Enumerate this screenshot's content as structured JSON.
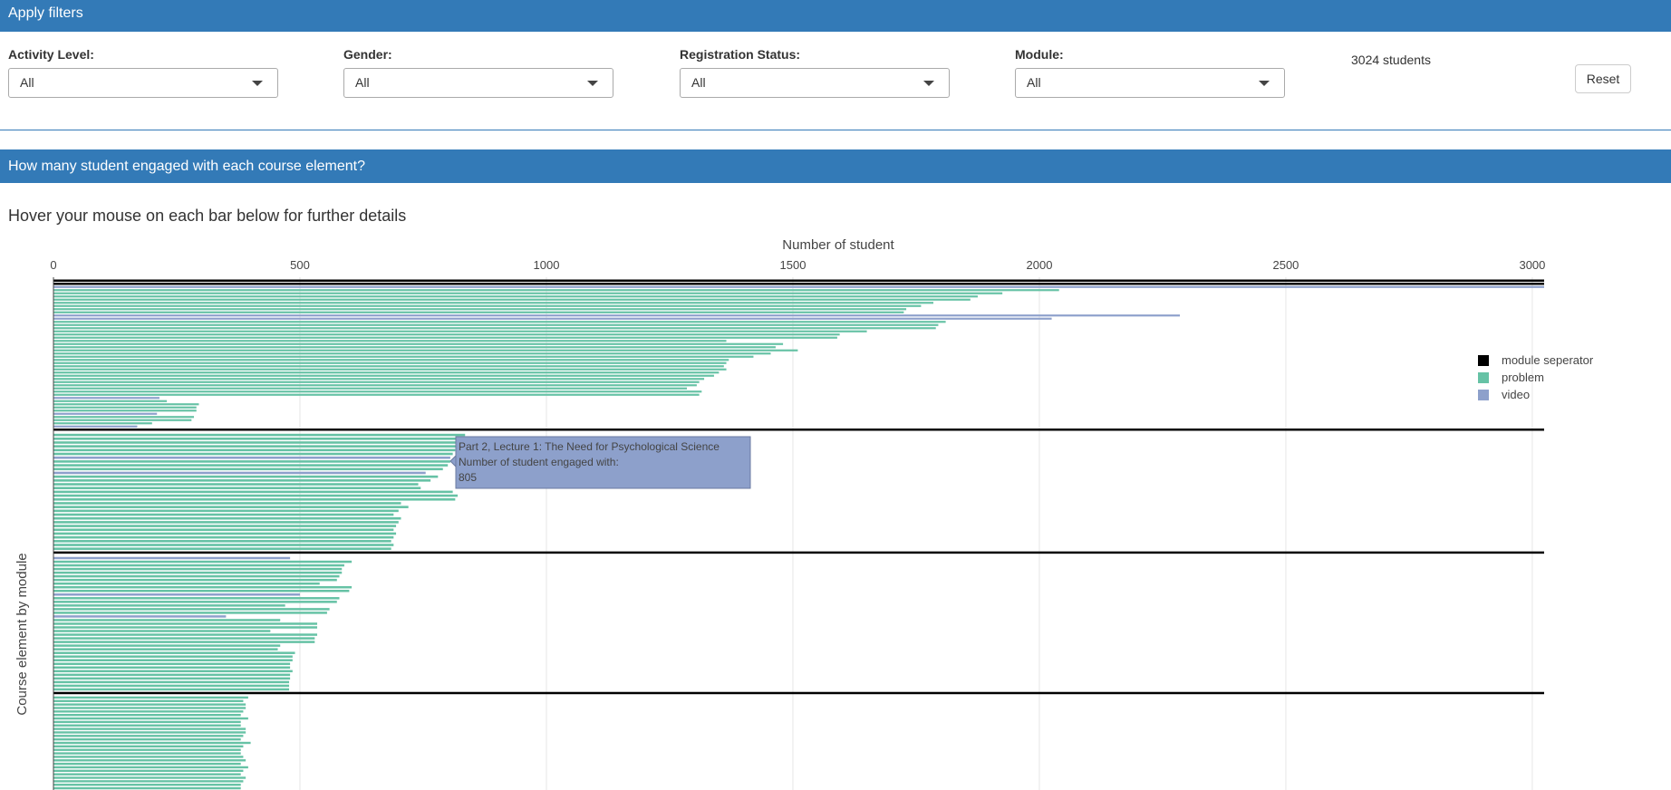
{
  "filters": {
    "heading": "Apply filters",
    "items": [
      {
        "label": "Activity Level:",
        "value": "All"
      },
      {
        "label": "Gender:",
        "value": "All"
      },
      {
        "label": "Registration Status:",
        "value": "All"
      },
      {
        "label": "Module:",
        "value": "All"
      }
    ],
    "student_count": "3024 students",
    "reset_label": "Reset"
  },
  "section": {
    "heading": "How many student engaged with each course element?",
    "hover_hint": "Hover your mouse on each bar below for further details"
  },
  "colors": {
    "header_bg": "#337ab7",
    "problem": "#66c2a5",
    "video": "#8da0cb",
    "separator": "#000000"
  },
  "chart_data": {
    "type": "bar",
    "orientation": "horizontal",
    "xlabel": "Number of student",
    "ylabel": "Course element by module",
    "xlim": [
      0,
      3024
    ],
    "xticks": [
      0,
      500,
      1000,
      1500,
      2000,
      2500,
      3000
    ],
    "grid": true,
    "legend_position": "right",
    "legend": [
      "module seperator",
      "problem",
      "video"
    ],
    "module_1": [
      {
        "t": "module seperator",
        "v": 3024
      },
      {
        "t": "module seperator",
        "v": 3024
      },
      {
        "t": "video",
        "v": 3024
      },
      {
        "t": "problem",
        "v": 2040
      },
      {
        "t": "problem",
        "v": 1925
      },
      {
        "t": "problem",
        "v": 1875
      },
      {
        "t": "problem",
        "v": 1860
      },
      {
        "t": "problem",
        "v": 1785
      },
      {
        "t": "problem",
        "v": 1760
      },
      {
        "t": "problem",
        "v": 1730
      },
      {
        "t": "problem",
        "v": 1725
      },
      {
        "t": "video",
        "v": 2285
      },
      {
        "t": "video",
        "v": 2025
      },
      {
        "t": "problem",
        "v": 1810
      },
      {
        "t": "problem",
        "v": 1795
      },
      {
        "t": "problem",
        "v": 1790
      },
      {
        "t": "problem",
        "v": 1650
      },
      {
        "t": "problem",
        "v": 1595
      },
      {
        "t": "problem",
        "v": 1590
      },
      {
        "t": "problem",
        "v": 1365
      },
      {
        "t": "problem",
        "v": 1480
      },
      {
        "t": "problem",
        "v": 1465
      },
      {
        "t": "problem",
        "v": 1510
      },
      {
        "t": "problem",
        "v": 1455
      },
      {
        "t": "problem",
        "v": 1420
      },
      {
        "t": "problem",
        "v": 1370
      },
      {
        "t": "problem",
        "v": 1365
      },
      {
        "t": "problem",
        "v": 1360
      },
      {
        "t": "problem",
        "v": 1365
      },
      {
        "t": "problem",
        "v": 1350
      },
      {
        "t": "problem",
        "v": 1340
      },
      {
        "t": "problem",
        "v": 1320
      },
      {
        "t": "problem",
        "v": 1310
      },
      {
        "t": "problem",
        "v": 1305
      },
      {
        "t": "problem",
        "v": 1285
      },
      {
        "t": "problem",
        "v": 1315
      },
      {
        "t": "problem",
        "v": 1310
      },
      {
        "t": "video",
        "v": 215
      },
      {
        "t": "problem",
        "v": 230
      },
      {
        "t": "problem",
        "v": 295
      },
      {
        "t": "problem",
        "v": 290
      },
      {
        "t": "problem",
        "v": 290
      },
      {
        "t": "video",
        "v": 210
      },
      {
        "t": "problem",
        "v": 285
      },
      {
        "t": "problem",
        "v": 280
      },
      {
        "t": "problem",
        "v": 200
      },
      {
        "t": "video",
        "v": 170
      },
      {
        "t": "module seperator",
        "v": 3024
      }
    ],
    "module_2": [
      {
        "t": "problem",
        "v": 835
      },
      {
        "t": "problem",
        "v": 830
      },
      {
        "t": "problem",
        "v": 825
      },
      {
        "t": "problem",
        "v": 820
      },
      {
        "t": "problem",
        "v": 815
      },
      {
        "t": "problem",
        "v": 810
      },
      {
        "t": "video",
        "v": 805
      },
      {
        "t": "problem",
        "v": 805
      },
      {
        "t": "problem",
        "v": 800
      },
      {
        "t": "problem",
        "v": 790
      },
      {
        "t": "video",
        "v": 755
      },
      {
        "t": "problem",
        "v": 780
      },
      {
        "t": "problem",
        "v": 765
      },
      {
        "t": "problem",
        "v": 740
      },
      {
        "t": "problem",
        "v": 745
      },
      {
        "t": "problem",
        "v": 810
      },
      {
        "t": "problem",
        "v": 820
      },
      {
        "t": "problem",
        "v": 815
      },
      {
        "t": "problem",
        "v": 705
      },
      {
        "t": "problem",
        "v": 720
      },
      {
        "t": "problem",
        "v": 700
      },
      {
        "t": "problem",
        "v": 690
      },
      {
        "t": "problem",
        "v": 705
      },
      {
        "t": "problem",
        "v": 700
      },
      {
        "t": "problem",
        "v": 695
      },
      {
        "t": "problem",
        "v": 690
      },
      {
        "t": "problem",
        "v": 695
      },
      {
        "t": "problem",
        "v": 690
      },
      {
        "t": "problem",
        "v": 685
      },
      {
        "t": "problem",
        "v": 690
      },
      {
        "t": "problem",
        "v": 685
      },
      {
        "t": "module seperator",
        "v": 3024
      }
    ],
    "module_3": [
      {
        "t": "video",
        "v": 480
      },
      {
        "t": "problem",
        "v": 605
      },
      {
        "t": "problem",
        "v": 590
      },
      {
        "t": "problem",
        "v": 585
      },
      {
        "t": "problem",
        "v": 585
      },
      {
        "t": "problem",
        "v": 580
      },
      {
        "t": "problem",
        "v": 575
      },
      {
        "t": "problem",
        "v": 540
      },
      {
        "t": "problem",
        "v": 605
      },
      {
        "t": "problem",
        "v": 600
      },
      {
        "t": "video",
        "v": 500
      },
      {
        "t": "problem",
        "v": 580
      },
      {
        "t": "problem",
        "v": 575
      },
      {
        "t": "problem",
        "v": 470
      },
      {
        "t": "problem",
        "v": 560
      },
      {
        "t": "problem",
        "v": 555
      },
      {
        "t": "video",
        "v": 350
      },
      {
        "t": "problem",
        "v": 460
      },
      {
        "t": "problem",
        "v": 535
      },
      {
        "t": "problem",
        "v": 535
      },
      {
        "t": "problem",
        "v": 440
      },
      {
        "t": "problem",
        "v": 535
      },
      {
        "t": "problem",
        "v": 530
      },
      {
        "t": "problem",
        "v": 530
      },
      {
        "t": "problem",
        "v": 460
      },
      {
        "t": "problem",
        "v": 455
      },
      {
        "t": "problem",
        "v": 490
      },
      {
        "t": "problem",
        "v": 485
      },
      {
        "t": "problem",
        "v": 485
      },
      {
        "t": "problem",
        "v": 480
      },
      {
        "t": "problem",
        "v": 480
      },
      {
        "t": "problem",
        "v": 485
      },
      {
        "t": "problem",
        "v": 480
      },
      {
        "t": "problem",
        "v": 480
      },
      {
        "t": "problem",
        "v": 478
      },
      {
        "t": "problem",
        "v": 478
      },
      {
        "t": "problem",
        "v": 478
      },
      {
        "t": "module seperator",
        "v": 3024
      }
    ],
    "module_4": [
      {
        "t": "problem",
        "v": 395
      },
      {
        "t": "problem",
        "v": 385
      },
      {
        "t": "problem",
        "v": 390
      },
      {
        "t": "problem",
        "v": 390
      },
      {
        "t": "problem",
        "v": 385
      },
      {
        "t": "problem",
        "v": 380
      },
      {
        "t": "problem",
        "v": 395
      },
      {
        "t": "problem",
        "v": 380
      },
      {
        "t": "problem",
        "v": 380
      },
      {
        "t": "problem",
        "v": 390
      },
      {
        "t": "problem",
        "v": 390
      },
      {
        "t": "problem",
        "v": 385
      },
      {
        "t": "problem",
        "v": 380
      },
      {
        "t": "problem",
        "v": 400
      },
      {
        "t": "problem",
        "v": 385
      },
      {
        "t": "problem",
        "v": 380
      },
      {
        "t": "problem",
        "v": 380
      },
      {
        "t": "problem",
        "v": 385
      },
      {
        "t": "problem",
        "v": 390
      },
      {
        "t": "problem",
        "v": 380
      },
      {
        "t": "problem",
        "v": 395
      },
      {
        "t": "problem",
        "v": 385
      },
      {
        "t": "problem",
        "v": 380
      },
      {
        "t": "problem",
        "v": 390
      },
      {
        "t": "problem",
        "v": 385
      },
      {
        "t": "problem",
        "v": 380
      },
      {
        "t": "problem",
        "v": 380
      }
    ],
    "tooltip": {
      "title": "Part 2, Lecture 1: The Need for Psychological Science",
      "line2": "Number of student engaged with:",
      "value": "805"
    }
  }
}
